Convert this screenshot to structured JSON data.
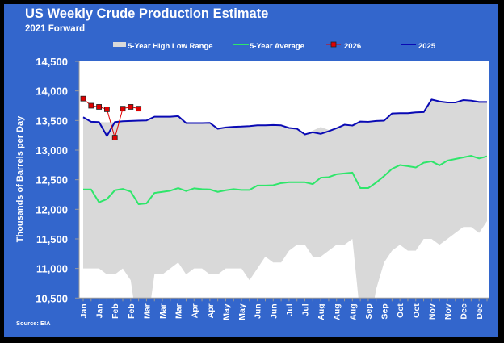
{
  "chart_data": {
    "type": "line",
    "title": "US Weekly Crude Production Estimate",
    "subtitle": "2021 Forward",
    "ylabel": "Thousands of Barrels per Day",
    "xlabel": "",
    "source": "Source: EIA",
    "ylim": [
      10500,
      14500
    ],
    "yticks": [
      "14,500",
      "14,000",
      "13,500",
      "13,000",
      "12,500",
      "12,000",
      "11,500",
      "11,000",
      "10,500"
    ],
    "ytick_values": [
      14500,
      14000,
      13500,
      13000,
      12500,
      12000,
      11500,
      11000,
      10500
    ],
    "xtick_labels": [
      "Jan",
      "Jan",
      "Feb",
      "Feb",
      "Mar",
      "Mar",
      "Mar",
      "Apr",
      "Apr",
      "May",
      "May",
      "Jun",
      "Jun",
      "Jul",
      "Jul",
      "Aug",
      "Aug",
      "Aug",
      "Sep",
      "Sep",
      "Oct",
      "Oct",
      "Nov",
      "Nov",
      "Dec",
      "Dec"
    ],
    "weeks": 52,
    "grid": false,
    "legend_placement": "top",
    "legend": [
      "5-Year High Low Range",
      "5-Year Average",
      "2026",
      "2025"
    ],
    "colors": {
      "background": "#3366cc",
      "range": "#d9d9d9",
      "average": "#2ee66a",
      "y2026": "#e00000",
      "y2025": "#0a0ab4"
    },
    "range": {
      "name": "5-Year High Low Range",
      "high": [
        13555,
        13479,
        13474,
        13470,
        13474,
        13487,
        13492,
        13497,
        13501,
        13564,
        13564,
        13564,
        13574,
        13456,
        13456,
        13456,
        13460,
        13361,
        13384,
        13393,
        13398,
        13406,
        13419,
        13419,
        13424,
        13419,
        13375,
        13361,
        13266,
        13330,
        13390,
        13340,
        13370,
        13429,
        13415,
        13483,
        13478,
        13492,
        13497,
        13619,
        13624,
        13624,
        13637,
        13642,
        13854,
        13822,
        13804,
        13804,
        13845,
        13836,
        13813,
        13813
      ],
      "low": [
        11000,
        11000,
        11000,
        10900,
        10900,
        11000,
        10800,
        9900,
        9930,
        10900,
        10900,
        11000,
        11100,
        10900,
        11000,
        11000,
        10900,
        10900,
        11000,
        11000,
        11000,
        10800,
        11000,
        11200,
        11100,
        11100,
        11300,
        11400,
        11400,
        11200,
        11200,
        11300,
        11400,
        11400,
        11500,
        10180,
        9900,
        10650,
        11100,
        11300,
        11400,
        11300,
        11300,
        11500,
        11500,
        11400,
        11500,
        11600,
        11700,
        11700,
        11600,
        11800
      ]
    },
    "series": [
      {
        "name": "5-Year Average",
        "values": [
          12335,
          12335,
          12118,
          12172,
          12321,
          12344,
          12299,
          12086,
          12100,
          12276,
          12294,
          12313,
          12358,
          12308,
          12353,
          12340,
          12335,
          12294,
          12321,
          12340,
          12326,
          12326,
          12402,
          12402,
          12407,
          12443,
          12457,
          12457,
          12457,
          12425,
          12534,
          12543,
          12592,
          12606,
          12619,
          12358,
          12358,
          12452,
          12561,
          12683,
          12747,
          12729,
          12706,
          12787,
          12810,
          12743,
          12823,
          12850,
          12877,
          12904,
          12859,
          12895
        ]
      },
      {
        "name": "2026",
        "values": [
          13870,
          13750,
          13730,
          13690,
          13210,
          13700,
          13730,
          13700
        ]
      },
      {
        "name": "2025",
        "values": [
          13555,
          13479,
          13474,
          13239,
          13474,
          13487,
          13492,
          13497,
          13501,
          13564,
          13564,
          13564,
          13574,
          13456,
          13456,
          13456,
          13460,
          13361,
          13384,
          13393,
          13398,
          13406,
          13419,
          13419,
          13424,
          13419,
          13375,
          13361,
          13266,
          13302,
          13275,
          13320,
          13370,
          13429,
          13415,
          13483,
          13478,
          13492,
          13497,
          13619,
          13624,
          13624,
          13637,
          13642,
          13854,
          13822,
          13804,
          13804,
          13845,
          13836,
          13813,
          13813
        ]
      }
    ]
  }
}
